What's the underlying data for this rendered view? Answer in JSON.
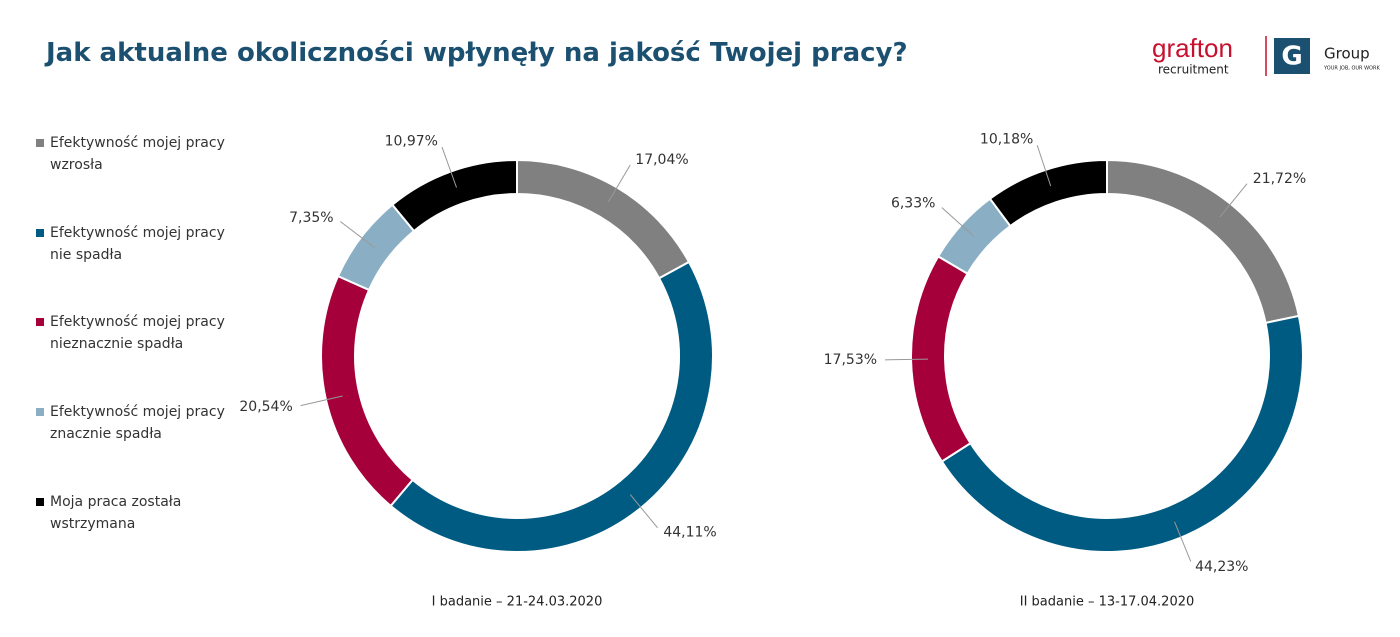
{
  "title": "Jak aktualne okoliczności wpłynęły na jakość Twojej pracy?",
  "logo": {
    "brand": "grafton",
    "sub": "recruitment",
    "group": "Group",
    "mark": "G",
    "tagline": "YOUR JOB, OUR WORK"
  },
  "chart_data": [
    {
      "type": "donut",
      "subtitle": "I badanie – 21-24.03.2020",
      "categories": [
        "Efektywność mojej pracy wzrosła",
        "Efektywność mojej pracy nie spadła",
        "Efektywność mojej pracy nieznacznie spadła",
        "Efektywność mojej pracy znacznie spadła",
        "Moja praca została wstrzymana"
      ],
      "values": [
        17.04,
        44.11,
        20.54,
        7.35,
        10.97
      ],
      "value_labels": [
        "17,04%",
        "44,11%",
        "20,54%",
        "7,35%",
        "10,97%"
      ],
      "colors": [
        "#808080",
        "#005b82",
        "#a6003a",
        "#8aafc4",
        "#000000"
      ]
    },
    {
      "type": "donut",
      "subtitle": "II badanie – 13-17.04.2020",
      "categories": [
        "Efektywność mojej pracy wzrosła",
        "Efektywność mojej pracy nie spadła",
        "Efektywność mojej pracy nieznacznie spadła",
        "Efektywność mojej pracy znacznie spadła",
        "Moja praca została wstrzymana"
      ],
      "values": [
        21.72,
        44.23,
        17.53,
        6.33,
        10.18
      ],
      "value_labels": [
        "21,72%",
        "44,23%",
        "17,53%",
        "6,33%",
        "10,18%"
      ],
      "colors": [
        "#808080",
        "#005b82",
        "#a6003a",
        "#8aafc4",
        "#000000"
      ]
    }
  ]
}
